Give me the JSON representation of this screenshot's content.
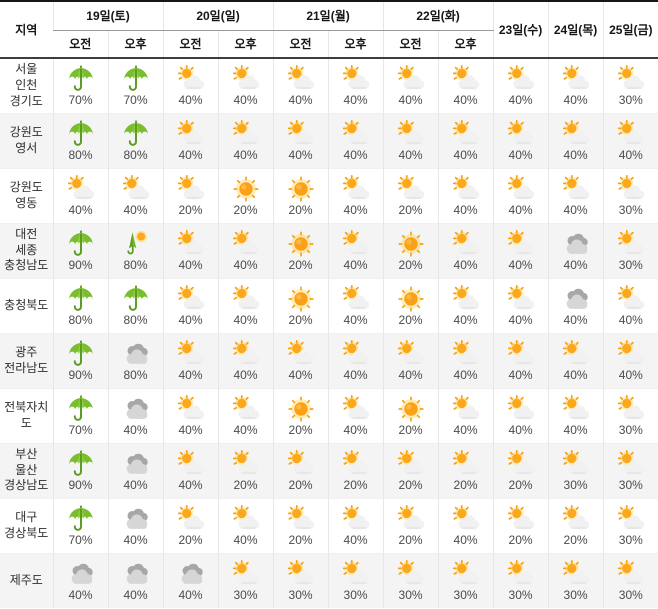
{
  "table": {
    "region_header": "지역",
    "am_label": "오전",
    "pm_label": "오후",
    "day_groups": [
      {
        "label": "19일(토)"
      },
      {
        "label": "20일(일)"
      },
      {
        "label": "21일(월)"
      },
      {
        "label": "22일(화)"
      }
    ],
    "single_days": [
      "23일(수)",
      "24일(목)",
      "25일(금)"
    ],
    "icon_names": {
      "rain": "rain-umbrella-icon",
      "rain_clearing": "rain-then-sun-icon",
      "partly": "partly-cloudy-icon",
      "sunny": "sunny-icon",
      "cloudy": "cloudy-icon"
    },
    "colors": {
      "umbrella_green": "#7ABD2F",
      "sun_orange": "#FBA019",
      "cloud_gray_dark": "#A7A7A7",
      "cloud_gray_light": "#D6D6D6",
      "row_stripe": "#F4F4F4"
    },
    "rows": [
      {
        "region": [
          "서울",
          "인천",
          "경기도"
        ],
        "cells": [
          {
            "icon": "rain",
            "pct": "70%"
          },
          {
            "icon": "rain",
            "pct": "70%"
          },
          {
            "icon": "partly",
            "pct": "40%"
          },
          {
            "icon": "partly",
            "pct": "40%"
          },
          {
            "icon": "partly",
            "pct": "40%"
          },
          {
            "icon": "partly",
            "pct": "40%"
          },
          {
            "icon": "partly",
            "pct": "40%"
          },
          {
            "icon": "partly",
            "pct": "40%"
          },
          {
            "icon": "partly",
            "pct": "40%"
          },
          {
            "icon": "partly",
            "pct": "40%"
          },
          {
            "icon": "partly",
            "pct": "30%"
          }
        ]
      },
      {
        "region": [
          "강원도",
          "영서"
        ],
        "cells": [
          {
            "icon": "rain",
            "pct": "80%"
          },
          {
            "icon": "rain",
            "pct": "80%"
          },
          {
            "icon": "partly",
            "pct": "40%"
          },
          {
            "icon": "partly",
            "pct": "40%"
          },
          {
            "icon": "partly",
            "pct": "40%"
          },
          {
            "icon": "partly",
            "pct": "40%"
          },
          {
            "icon": "partly",
            "pct": "40%"
          },
          {
            "icon": "partly",
            "pct": "40%"
          },
          {
            "icon": "partly",
            "pct": "40%"
          },
          {
            "icon": "partly",
            "pct": "40%"
          },
          {
            "icon": "partly",
            "pct": "40%"
          }
        ]
      },
      {
        "region": [
          "강원도",
          "영동"
        ],
        "cells": [
          {
            "icon": "partly",
            "pct": "40%"
          },
          {
            "icon": "partly",
            "pct": "40%"
          },
          {
            "icon": "partly",
            "pct": "20%"
          },
          {
            "icon": "sunny",
            "pct": "20%"
          },
          {
            "icon": "sunny",
            "pct": "20%"
          },
          {
            "icon": "partly",
            "pct": "40%"
          },
          {
            "icon": "partly",
            "pct": "20%"
          },
          {
            "icon": "partly",
            "pct": "40%"
          },
          {
            "icon": "partly",
            "pct": "40%"
          },
          {
            "icon": "partly",
            "pct": "40%"
          },
          {
            "icon": "partly",
            "pct": "30%"
          }
        ]
      },
      {
        "region": [
          "대전",
          "세종",
          "충청남도"
        ],
        "cells": [
          {
            "icon": "rain",
            "pct": "90%"
          },
          {
            "icon": "rain_clearing",
            "pct": "80%"
          },
          {
            "icon": "partly",
            "pct": "40%"
          },
          {
            "icon": "partly",
            "pct": "40%"
          },
          {
            "icon": "sunny",
            "pct": "20%"
          },
          {
            "icon": "partly",
            "pct": "40%"
          },
          {
            "icon": "sunny",
            "pct": "20%"
          },
          {
            "icon": "partly",
            "pct": "40%"
          },
          {
            "icon": "partly",
            "pct": "40%"
          },
          {
            "icon": "cloudy",
            "pct": "40%"
          },
          {
            "icon": "partly",
            "pct": "30%"
          }
        ]
      },
      {
        "region": [
          "충청북도"
        ],
        "cells": [
          {
            "icon": "rain",
            "pct": "80%"
          },
          {
            "icon": "rain",
            "pct": "80%"
          },
          {
            "icon": "partly",
            "pct": "40%"
          },
          {
            "icon": "partly",
            "pct": "40%"
          },
          {
            "icon": "sunny",
            "pct": "20%"
          },
          {
            "icon": "partly",
            "pct": "40%"
          },
          {
            "icon": "sunny",
            "pct": "20%"
          },
          {
            "icon": "partly",
            "pct": "40%"
          },
          {
            "icon": "partly",
            "pct": "40%"
          },
          {
            "icon": "cloudy",
            "pct": "40%"
          },
          {
            "icon": "partly",
            "pct": "40%"
          }
        ]
      },
      {
        "region": [
          "광주",
          "전라남도"
        ],
        "cells": [
          {
            "icon": "rain",
            "pct": "90%"
          },
          {
            "icon": "cloudy",
            "pct": "80%"
          },
          {
            "icon": "partly",
            "pct": "40%"
          },
          {
            "icon": "partly",
            "pct": "40%"
          },
          {
            "icon": "partly",
            "pct": "40%"
          },
          {
            "icon": "partly",
            "pct": "40%"
          },
          {
            "icon": "partly",
            "pct": "40%"
          },
          {
            "icon": "partly",
            "pct": "40%"
          },
          {
            "icon": "partly",
            "pct": "40%"
          },
          {
            "icon": "partly",
            "pct": "40%"
          },
          {
            "icon": "partly",
            "pct": "40%"
          }
        ]
      },
      {
        "region": [
          "전북자치도"
        ],
        "cells": [
          {
            "icon": "rain",
            "pct": "70%"
          },
          {
            "icon": "cloudy",
            "pct": "40%"
          },
          {
            "icon": "partly",
            "pct": "40%"
          },
          {
            "icon": "partly",
            "pct": "40%"
          },
          {
            "icon": "sunny",
            "pct": "20%"
          },
          {
            "icon": "partly",
            "pct": "40%"
          },
          {
            "icon": "sunny",
            "pct": "20%"
          },
          {
            "icon": "partly",
            "pct": "40%"
          },
          {
            "icon": "partly",
            "pct": "40%"
          },
          {
            "icon": "partly",
            "pct": "40%"
          },
          {
            "icon": "partly",
            "pct": "30%"
          }
        ]
      },
      {
        "region": [
          "부산",
          "울산",
          "경상남도"
        ],
        "cells": [
          {
            "icon": "rain",
            "pct": "90%"
          },
          {
            "icon": "cloudy",
            "pct": "40%"
          },
          {
            "icon": "partly",
            "pct": "40%"
          },
          {
            "icon": "partly",
            "pct": "20%"
          },
          {
            "icon": "partly",
            "pct": "20%"
          },
          {
            "icon": "partly",
            "pct": "20%"
          },
          {
            "icon": "partly",
            "pct": "20%"
          },
          {
            "icon": "partly",
            "pct": "20%"
          },
          {
            "icon": "partly",
            "pct": "20%"
          },
          {
            "icon": "partly",
            "pct": "30%"
          },
          {
            "icon": "partly",
            "pct": "30%"
          }
        ]
      },
      {
        "region": [
          "대구",
          "경상북도"
        ],
        "cells": [
          {
            "icon": "rain",
            "pct": "70%"
          },
          {
            "icon": "cloudy",
            "pct": "40%"
          },
          {
            "icon": "partly",
            "pct": "20%"
          },
          {
            "icon": "partly",
            "pct": "40%"
          },
          {
            "icon": "partly",
            "pct": "20%"
          },
          {
            "icon": "partly",
            "pct": "40%"
          },
          {
            "icon": "partly",
            "pct": "20%"
          },
          {
            "icon": "partly",
            "pct": "40%"
          },
          {
            "icon": "partly",
            "pct": "20%"
          },
          {
            "icon": "partly",
            "pct": "20%"
          },
          {
            "icon": "partly",
            "pct": "30%"
          }
        ]
      },
      {
        "region": [
          "제주도"
        ],
        "cells": [
          {
            "icon": "cloudy",
            "pct": "40%"
          },
          {
            "icon": "cloudy",
            "pct": "40%"
          },
          {
            "icon": "cloudy",
            "pct": "40%"
          },
          {
            "icon": "partly",
            "pct": "30%"
          },
          {
            "icon": "partly",
            "pct": "30%"
          },
          {
            "icon": "partly",
            "pct": "30%"
          },
          {
            "icon": "partly",
            "pct": "30%"
          },
          {
            "icon": "partly",
            "pct": "30%"
          },
          {
            "icon": "partly",
            "pct": "30%"
          },
          {
            "icon": "partly",
            "pct": "30%"
          },
          {
            "icon": "partly",
            "pct": "30%"
          }
        ]
      }
    ]
  }
}
